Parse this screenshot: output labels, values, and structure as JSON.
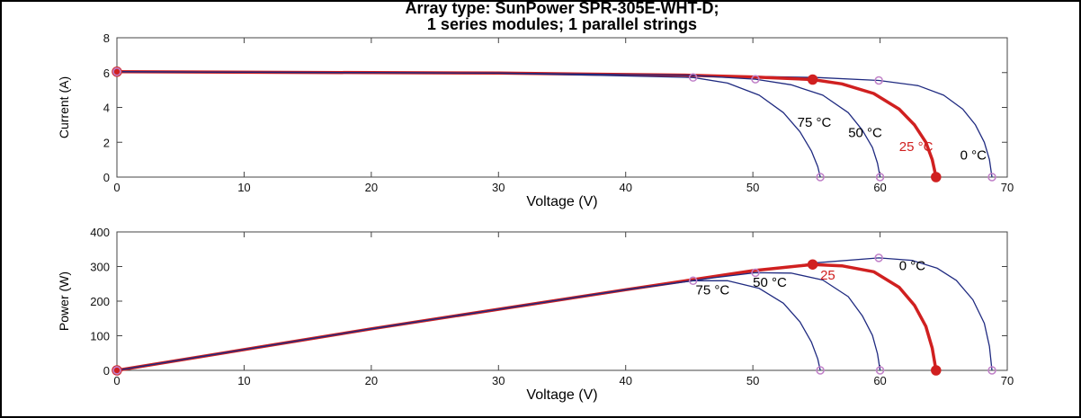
{
  "chart_data": [
    {
      "type": "line",
      "title": [
        "Array type: SunPower SPR-305E-WHT-D;",
        "1 series modules; 1 parallel strings"
      ],
      "xlabel": "Voltage (V)",
      "ylabel": "Current (A)",
      "xlim": [
        0,
        70
      ],
      "ylim": [
        0,
        8
      ],
      "xticks": [
        0,
        10,
        20,
        30,
        40,
        50,
        60,
        70
      ],
      "yticks": [
        0,
        2,
        4,
        6,
        8
      ],
      "grid": false,
      "series": [
        {
          "name": "0 °C",
          "color": "#1f2a80",
          "points": [
            [
              0,
              6.05
            ],
            [
              30,
              5.97
            ],
            [
              45,
              5.85
            ],
            [
              55,
              5.72
            ],
            [
              59.9,
              5.55
            ],
            [
              63,
              5.25
            ],
            [
              65,
              4.7
            ],
            [
              66.5,
              3.9
            ],
            [
              67.5,
              3.0
            ],
            [
              68.2,
              2.0
            ],
            [
              68.6,
              1.0
            ],
            [
              68.8,
              0
            ]
          ],
          "markers": [
            [
              0,
              6.05
            ],
            [
              59.9,
              5.55
            ],
            [
              68.8,
              0
            ]
          ]
        },
        {
          "name": "25 °C",
          "color": "#d02020",
          "highlight": true,
          "points": [
            [
              0,
              6.05
            ],
            [
              30,
              5.97
            ],
            [
              45,
              5.85
            ],
            [
              50,
              5.75
            ],
            [
              54.7,
              5.6
            ],
            [
              57,
              5.35
            ],
            [
              59.5,
              4.8
            ],
            [
              61.5,
              3.9
            ],
            [
              62.7,
              3.0
            ],
            [
              63.6,
              2.0
            ],
            [
              64.1,
              1.0
            ],
            [
              64.4,
              0
            ]
          ],
          "markers": [
            [
              0,
              6.05
            ],
            [
              54.7,
              5.6
            ],
            [
              64.4,
              0
            ]
          ]
        },
        {
          "name": "50 °C",
          "color": "#1f2a80",
          "points": [
            [
              0,
              6.05
            ],
            [
              30,
              5.97
            ],
            [
              45,
              5.85
            ],
            [
              50.2,
              5.62
            ],
            [
              53,
              5.3
            ],
            [
              55.5,
              4.7
            ],
            [
              57.5,
              3.7
            ],
            [
              58.6,
              2.7
            ],
            [
              59.4,
              1.7
            ],
            [
              59.8,
              0.8
            ],
            [
              60,
              0
            ]
          ],
          "markers": [
            [
              0,
              6.05
            ],
            [
              50.2,
              5.62
            ],
            [
              60,
              0
            ]
          ]
        },
        {
          "name": "75 °C",
          "color": "#1f2a80",
          "points": [
            [
              0,
              6.05
            ],
            [
              30,
              5.97
            ],
            [
              45.3,
              5.72
            ],
            [
              48,
              5.4
            ],
            [
              50.5,
              4.7
            ],
            [
              52.4,
              3.7
            ],
            [
              53.7,
              2.6
            ],
            [
              54.6,
              1.5
            ],
            [
              55.1,
              0.6
            ],
            [
              55.3,
              0
            ]
          ],
          "markers": [
            [
              0,
              6.05
            ],
            [
              45.3,
              5.72
            ],
            [
              55.3,
              0
            ]
          ]
        }
      ],
      "annotations": [
        {
          "text": "75 °C",
          "x": 53.5,
          "y": 2.9,
          "color": "#000000"
        },
        {
          "text": "50 °C",
          "x": 57.5,
          "y": 2.3,
          "color": "#000000"
        },
        {
          "text": "25 °C",
          "x": 61.5,
          "y": 1.5,
          "color": "#d02020"
        },
        {
          "text": "0 °C",
          "x": 66.3,
          "y": 1.0,
          "color": "#000000"
        }
      ]
    },
    {
      "type": "line",
      "xlabel": "Voltage (V)",
      "ylabel": "Power (W)",
      "xlim": [
        0,
        70
      ],
      "ylim": [
        0,
        400
      ],
      "xticks": [
        0,
        10,
        20,
        30,
        40,
        50,
        60,
        70
      ],
      "yticks": [
        0,
        100,
        200,
        300,
        400
      ],
      "grid": false,
      "series": [
        {
          "name": "0 °C",
          "color": "#1f2a80",
          "points": [
            [
              0,
              0
            ],
            [
              20,
              120
            ],
            [
              40,
              233
            ],
            [
              50,
              285
            ],
            [
              55,
              311
            ],
            [
              59.9,
              325
            ],
            [
              62.5,
              318
            ],
            [
              64.5,
              295
            ],
            [
              66,
              260
            ],
            [
              67.3,
              204
            ],
            [
              68.2,
              136
            ],
            [
              68.6,
              69
            ],
            [
              68.8,
              0
            ]
          ],
          "markers": [
            [
              0,
              0
            ],
            [
              59.9,
              325
            ],
            [
              68.8,
              0
            ]
          ]
        },
        {
          "name": "25 °C",
          "color": "#d02020",
          "highlight": true,
          "points": [
            [
              0,
              0
            ],
            [
              20,
              120
            ],
            [
              40,
              233
            ],
            [
              50,
              288
            ],
            [
              54.7,
              306
            ],
            [
              57,
              302
            ],
            [
              59.5,
              285
            ],
            [
              61.5,
              240
            ],
            [
              62.7,
              188
            ],
            [
              63.6,
              127
            ],
            [
              64.1,
              64
            ],
            [
              64.4,
              0
            ]
          ],
          "markers": [
            [
              0,
              0
            ],
            [
              54.7,
              306
            ],
            [
              64.4,
              0
            ]
          ]
        },
        {
          "name": "50 °C",
          "color": "#1f2a80",
          "points": [
            [
              0,
              0
            ],
            [
              20,
              120
            ],
            [
              40,
              233
            ],
            [
              47,
              268
            ],
            [
              50.2,
              282
            ],
            [
              53,
              281
            ],
            [
              55.5,
              261
            ],
            [
              57.5,
              213
            ],
            [
              58.6,
              158
            ],
            [
              59.4,
              101
            ],
            [
              59.8,
              48
            ],
            [
              60,
              0
            ]
          ],
          "markers": [
            [
              0,
              0
            ],
            [
              50.2,
              282
            ],
            [
              60,
              0
            ]
          ]
        },
        {
          "name": "75 °C",
          "color": "#1f2a80",
          "points": [
            [
              0,
              0
            ],
            [
              20,
              120
            ],
            [
              40,
              233
            ],
            [
              45.3,
              259
            ],
            [
              48,
              259
            ],
            [
              50.5,
              237
            ],
            [
              52.4,
              194
            ],
            [
              53.7,
              140
            ],
            [
              54.6,
              82
            ],
            [
              55.1,
              33
            ],
            [
              55.3,
              0
            ]
          ],
          "markers": [
            [
              0,
              0
            ],
            [
              45.3,
              259
            ],
            [
              55.3,
              0
            ]
          ]
        }
      ],
      "annotations": [
        {
          "text": "75 °C",
          "x": 45.5,
          "y": 220,
          "color": "#000000"
        },
        {
          "text": "50 °C",
          "x": 50,
          "y": 242,
          "color": "#000000"
        },
        {
          "text": "25",
          "x": 55.3,
          "y": 262,
          "color": "#d02020"
        },
        {
          "text": "0 °C",
          "x": 61.5,
          "y": 290,
          "color": "#000000"
        }
      ]
    }
  ]
}
